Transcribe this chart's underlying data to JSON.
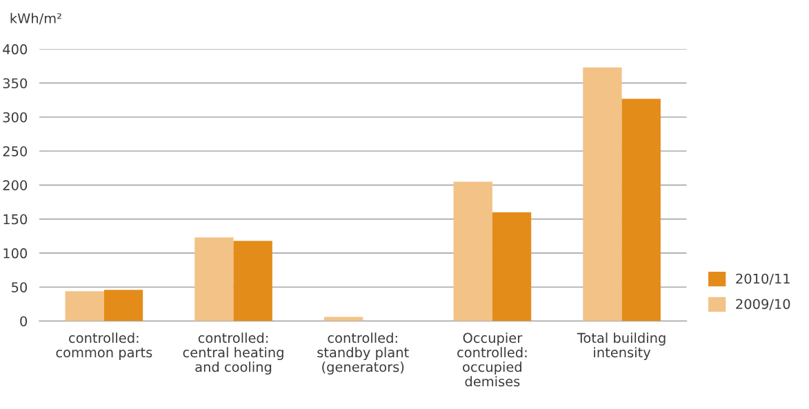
{
  "chart_data": {
    "type": "bar",
    "ylabel": "kWh/m²",
    "categories": [
      "controlled:\ncommon parts",
      "controlled:\ncentral heating\nand cooling",
      "controlled:\nstandby plant\n(generators)",
      "Occupier\ncontrolled:\noccupied\ndemises",
      "Total building\nintensity"
    ],
    "series": [
      {
        "name": "2009/10",
        "color": "#f2c287",
        "values": [
          44,
          123,
          6,
          205,
          373
        ]
      },
      {
        "name": "2010/11",
        "color": "#e38c1a",
        "values": [
          46,
          118,
          null,
          160,
          327
        ]
      }
    ],
    "ylim": [
      0,
      400
    ],
    "yticks": [
      0,
      50,
      100,
      150,
      200,
      250,
      300,
      350,
      400
    ],
    "grid": "y",
    "legend": "bottom right"
  }
}
